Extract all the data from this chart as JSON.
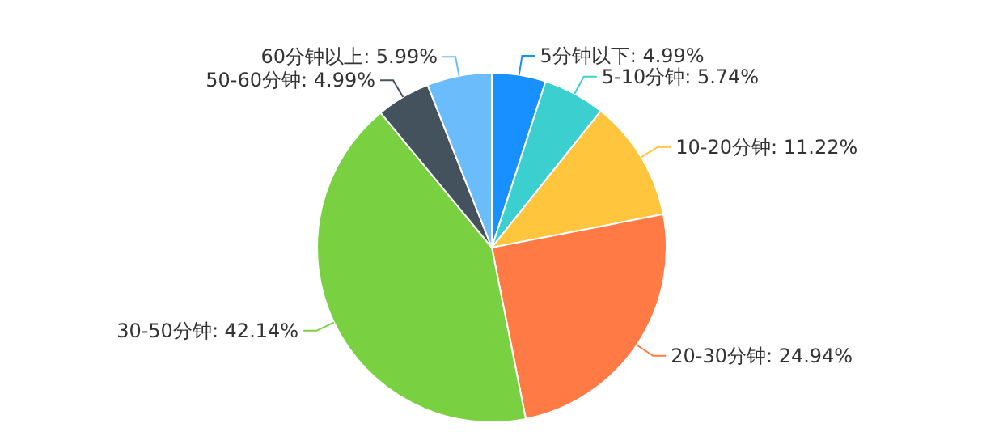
{
  "chart_data": {
    "type": "pie",
    "categories": [
      "5分钟以下",
      "5-10分钟",
      "10-20分钟",
      "20-30分钟",
      "30-50分钟",
      "50-60分钟",
      "60分钟以上"
    ],
    "values": [
      4.99,
      5.74,
      11.22,
      24.94,
      42.14,
      4.99,
      5.99
    ],
    "colors": [
      "#1890ff",
      "#3ccfcf",
      "#ffc53d",
      "#ff7a45",
      "#79d141",
      "#44525e",
      "#6bbcfa"
    ],
    "value_labels": [
      ": 4.99%",
      ": 5.74%",
      ": 11.22%",
      ": 24.94%",
      ": 42.14%",
      ": 4.99%",
      ": 5.99%"
    ]
  }
}
